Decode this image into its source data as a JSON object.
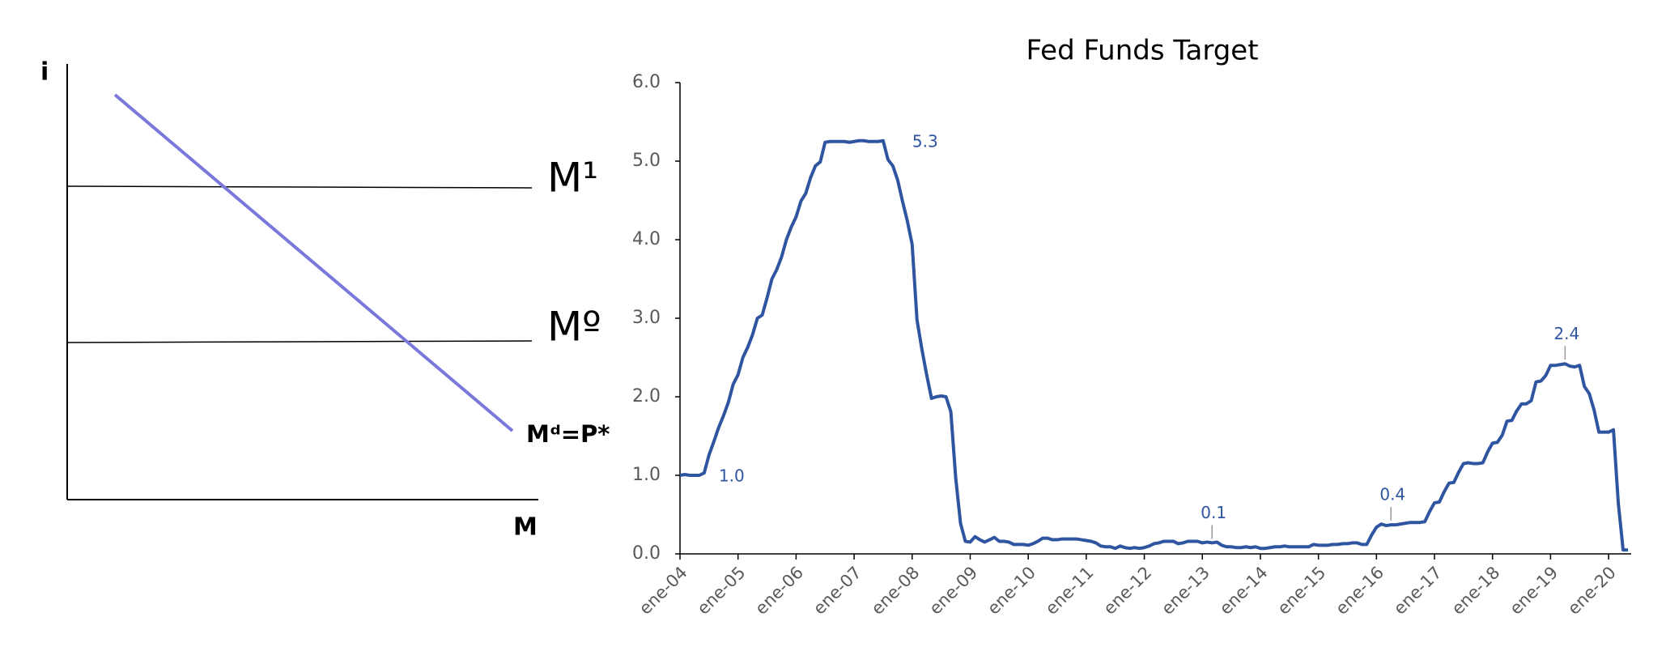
{
  "diagram": {
    "y_axis_label": "i",
    "x_axis_label": "M",
    "supply_high_label": "M¹",
    "supply_low_label": "Mº",
    "demand_label": "Mᵈ=P* f"
  },
  "chart_data": {
    "type": "line",
    "title": "Fed Funds Target",
    "categories": [
      "ene-04",
      null,
      null,
      null,
      null,
      null,
      null,
      null,
      null,
      null,
      null,
      null,
      "ene-05",
      null,
      null,
      null,
      null,
      null,
      null,
      null,
      null,
      null,
      null,
      null,
      "ene-06",
      null,
      null,
      null,
      null,
      null,
      null,
      null,
      null,
      null,
      null,
      null,
      "ene-07",
      null,
      null,
      null,
      null,
      null,
      null,
      null,
      null,
      null,
      null,
      null,
      "ene-08",
      null,
      null,
      null,
      null,
      null,
      null,
      null,
      null,
      null,
      null,
      null,
      "ene-09",
      null,
      null,
      null,
      null,
      null,
      null,
      null,
      null,
      null,
      null,
      null,
      "ene-10",
      null,
      null,
      null,
      null,
      null,
      null,
      null,
      null,
      null,
      null,
      null,
      "ene-11",
      null,
      null,
      null,
      null,
      null,
      null,
      null,
      null,
      null,
      null,
      null,
      "ene-12",
      null,
      null,
      null,
      null,
      null,
      null,
      null,
      null,
      null,
      null,
      null,
      "ene-13",
      null,
      null,
      null,
      null,
      null,
      null,
      null,
      null,
      null,
      null,
      null,
      "ene-14",
      null,
      null,
      null,
      null,
      null,
      null,
      null,
      null,
      null,
      null,
      null,
      "ene-15",
      null,
      null,
      null,
      null,
      null,
      null,
      null,
      null,
      null,
      null,
      null,
      "ene-16",
      null,
      null,
      null,
      null,
      null,
      null,
      null,
      null,
      null,
      null,
      null,
      "ene-17",
      null,
      null,
      null,
      null,
      null,
      null,
      null,
      null,
      null,
      null,
      null,
      "ene-18",
      null,
      null,
      null,
      null,
      null,
      null,
      null,
      null,
      null,
      null,
      null,
      "ene-19",
      null,
      null,
      null,
      null,
      null,
      null,
      null,
      null,
      null,
      null,
      null,
      "ene-20",
      null,
      null,
      null,
      null
    ],
    "series": [
      {
        "color": "#2f55a0",
        "values": [
          1.0,
          1.01,
          1.0,
          1.0,
          1.0,
          1.03,
          1.26,
          1.43,
          1.61,
          1.76,
          1.93,
          2.16,
          2.28,
          2.5,
          2.63,
          2.79,
          3.0,
          3.04,
          3.26,
          3.5,
          3.62,
          3.78,
          4.0,
          4.16,
          4.29,
          4.49,
          4.59,
          4.79,
          4.94,
          4.99,
          5.24,
          5.25,
          5.25,
          5.25,
          5.25,
          5.24,
          5.25,
          5.26,
          5.26,
          5.25,
          5.25,
          5.25,
          5.26,
          5.02,
          4.94,
          4.76,
          4.49,
          4.24,
          3.94,
          2.98,
          2.61,
          2.28,
          1.98,
          2.0,
          2.01,
          2.0,
          1.81,
          0.97,
          0.39,
          0.16,
          0.15,
          0.22,
          0.18,
          0.15,
          0.18,
          0.21,
          0.16,
          0.16,
          0.15,
          0.12,
          0.12,
          0.12,
          0.11,
          0.13,
          0.16,
          0.2,
          0.2,
          0.18,
          0.18,
          0.19,
          0.19,
          0.19,
          0.19,
          0.18,
          0.17,
          0.16,
          0.14,
          0.1,
          0.09,
          0.09,
          0.07,
          0.1,
          0.08,
          0.07,
          0.08,
          0.07,
          0.08,
          0.1,
          0.13,
          0.14,
          0.16,
          0.16,
          0.16,
          0.13,
          0.14,
          0.16,
          0.16,
          0.16,
          0.14,
          0.15,
          0.14,
          0.15,
          0.11,
          0.09,
          0.09,
          0.08,
          0.08,
          0.09,
          0.08,
          0.09,
          0.07,
          0.07,
          0.08,
          0.09,
          0.09,
          0.1,
          0.09,
          0.09,
          0.09,
          0.09,
          0.09,
          0.12,
          0.11,
          0.11,
          0.11,
          0.12,
          0.12,
          0.13,
          0.13,
          0.14,
          0.14,
          0.12,
          0.12,
          0.24,
          0.34,
          0.38,
          0.36,
          0.37,
          0.37,
          0.38,
          0.39,
          0.4,
          0.4,
          0.4,
          0.41,
          0.54,
          0.65,
          0.66,
          0.79,
          0.9,
          0.91,
          1.04,
          1.15,
          1.16,
          1.15,
          1.15,
          1.16,
          1.3,
          1.41,
          1.42,
          1.51,
          1.69,
          1.7,
          1.82,
          1.91,
          1.91,
          1.95,
          2.19,
          2.2,
          2.27,
          2.4,
          2.4,
          2.41,
          2.42,
          2.39,
          2.38,
          2.4,
          2.13,
          2.04,
          1.83,
          1.55,
          1.55,
          1.55,
          1.58,
          0.65,
          0.05,
          0.05
        ],
        "value_labels": [
          null,
          null,
          "1.0",
          null,
          null,
          null,
          null,
          null,
          null,
          null,
          null,
          null,
          null,
          null,
          null,
          null,
          null,
          null,
          null,
          null,
          null,
          null,
          null,
          null,
          null,
          null,
          null,
          null,
          null,
          null,
          null,
          null,
          null,
          null,
          null,
          null,
          null,
          null,
          null,
          null,
          null,
          null,
          "5.3",
          null,
          null,
          null,
          null,
          null,
          null,
          null,
          null,
          null,
          null,
          null,
          null,
          null,
          null,
          null,
          null,
          null,
          null,
          null,
          null,
          null,
          null,
          null,
          null,
          null,
          null,
          null,
          null,
          null,
          null,
          null,
          null,
          null,
          null,
          null,
          null,
          null,
          null,
          null,
          null,
          null,
          null,
          null,
          null,
          null,
          null,
          null,
          null,
          null,
          null,
          null,
          null,
          null,
          null,
          null,
          null,
          null,
          null,
          null,
          null,
          null,
          null,
          null,
          null,
          null,
          null,
          null,
          "0.1",
          null,
          null,
          null,
          null,
          null,
          null,
          null,
          null,
          null,
          null,
          null,
          null,
          null,
          null,
          null,
          null,
          null,
          null,
          null,
          null,
          null,
          null,
          null,
          null,
          null,
          null,
          null,
          null,
          null,
          null,
          null,
          null,
          null,
          null,
          null,
          null,
          "0.4",
          null,
          null,
          null,
          null,
          null,
          null,
          null,
          null,
          null,
          null,
          null,
          null,
          null,
          null,
          null,
          null,
          null,
          null,
          null,
          null,
          null,
          null,
          null,
          null,
          null,
          null,
          null,
          null,
          null,
          null,
          null,
          null,
          null,
          null,
          null,
          "2.4",
          null,
          null,
          null,
          null,
          null,
          null,
          null,
          null,
          null,
          null,
          null,
          null,
          null
        ]
      }
    ],
    "ylim": [
      0,
      6
    ],
    "yticks": [
      {
        "value": 0,
        "label": "0.0"
      },
      {
        "value": 1,
        "label": "1.0"
      },
      {
        "value": 2,
        "label": "2.0"
      },
      {
        "value": 3,
        "label": "3.0"
      },
      {
        "value": 4,
        "label": "4.0"
      },
      {
        "value": 5,
        "label": "5.0"
      },
      {
        "value": 6,
        "label": "6.0"
      }
    ],
    "grid": false
  }
}
